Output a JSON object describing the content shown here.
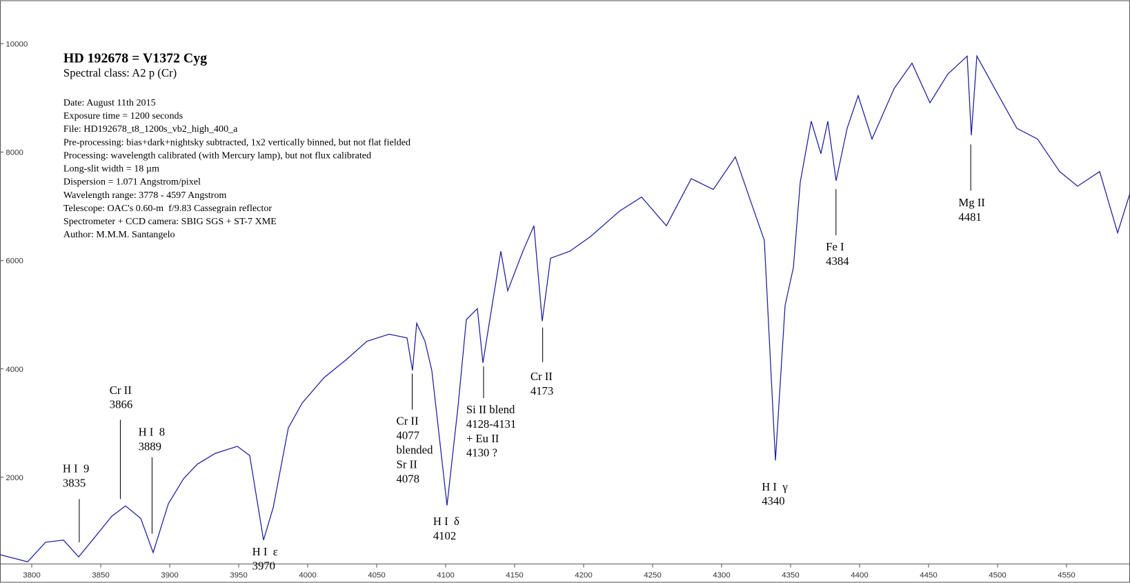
{
  "chart_data": {
    "type": "line",
    "title": "HD 192678 = V1372 Cyg",
    "subtitle": "Spectral class: A2 p (Cr)",
    "notes": [
      "Date: August 11th 2015",
      "Exposure time = 1200 seconds",
      "File: HD192678_t8_1200s_vb2_high_400_a",
      "Pre-processing: bias+dark+nightsky subtracted, 1x2 vertically binned, but not flat fielded",
      "Processing: wavelength calibrated (with Mercury lamp), but not flux calibrated",
      "Long-slit width = 18 µm",
      "Dispersion = 1.071 Angstrom/pixel",
      "Wavelength range: 3778 - 4597 Angstrom",
      "Telescope: OAC's 0.60-m  f/9.83 Cassegrain reflector",
      "Spectrometer + CCD camera: SBIG SGS + ST-7 XME",
      "Author: M.M.M. Santangelo"
    ],
    "annotations": [
      {
        "lines": [
          "H I  9",
          "3835"
        ]
      },
      {
        "lines": [
          "Cr II",
          "3866"
        ]
      },
      {
        "lines": [
          "H I  8",
          "3889"
        ]
      },
      {
        "lines": [
          "H I  ε",
          "3970"
        ]
      },
      {
        "lines": [
          "Cr II",
          "4077",
          "blended",
          "Sr II",
          "4078"
        ]
      },
      {
        "lines": [
          "H I  δ",
          "4102"
        ]
      },
      {
        "lines": [
          "Si II blend",
          "4128-4131",
          "+ Eu II",
          "4130 ?"
        ]
      },
      {
        "lines": [
          "Cr II",
          "4173"
        ]
      },
      {
        "lines": [
          "H I  γ",
          "4340"
        ]
      },
      {
        "lines": [
          "Fe I",
          "4384"
        ]
      },
      {
        "lines": [
          "Mg II",
          "4481"
        ]
      }
    ],
    "x": [
      3777,
      3797,
      3810,
      3823,
      3834,
      3844,
      3858,
      3868,
      3879,
      3888,
      3899,
      3910,
      3920,
      3933,
      3949,
      3958,
      3968,
      3975,
      3986,
      3996,
      4012,
      4028,
      4043,
      4059,
      4072,
      4076,
      4079,
      4085,
      4090,
      4101,
      4109,
      4115,
      4123,
      4127,
      4132,
      4140,
      4145,
      4156,
      4164,
      4170,
      4176,
      4190,
      4205,
      4226,
      4242,
      4260,
      4278,
      4294,
      4310,
      4320,
      4331,
      4339,
      4346,
      4352,
      4357,
      4365,
      4372,
      4377,
      4383,
      4391,
      4399,
      4409,
      4425,
      4438,
      4451,
      4464,
      4478,
      4481,
      4485,
      4498,
      4514,
      4529,
      4545,
      4558,
      4574,
      4587,
      4596
    ],
    "series": [
      {
        "name": "flux",
        "color": "#1c1c9c",
        "values": [
          570,
          440,
          800,
          840,
          530,
          840,
          1280,
          1470,
          1240,
          610,
          1510,
          1970,
          2240,
          2440,
          2570,
          2400,
          840,
          1440,
          2910,
          3370,
          3840,
          4170,
          4510,
          4640,
          4570,
          3970,
          4840,
          4510,
          3970,
          1480,
          3310,
          4910,
          5110,
          4110,
          4910,
          6170,
          5440,
          6170,
          6640,
          4880,
          6040,
          6170,
          6440,
          6910,
          7170,
          6640,
          7510,
          7310,
          7910,
          7170,
          6370,
          2310,
          5170,
          5870,
          7440,
          8570,
          7970,
          8570,
          7470,
          8440,
          9040,
          8240,
          9170,
          9640,
          8910,
          9440,
          9770,
          8310,
          9770,
          9170,
          8440,
          8240,
          7640,
          7370,
          7640,
          6510,
          7240
        ]
      }
    ],
    "xlim": [
      3777,
      4596
    ],
    "ylim": [
      400,
      10800
    ],
    "xticks": [
      3800,
      3850,
      3900,
      3950,
      4000,
      4050,
      4100,
      4150,
      4200,
      4250,
      4300,
      4350,
      4400,
      4450,
      4500,
      4550
    ],
    "yticks": [
      2000,
      4000,
      6000,
      8000,
      10000
    ]
  }
}
